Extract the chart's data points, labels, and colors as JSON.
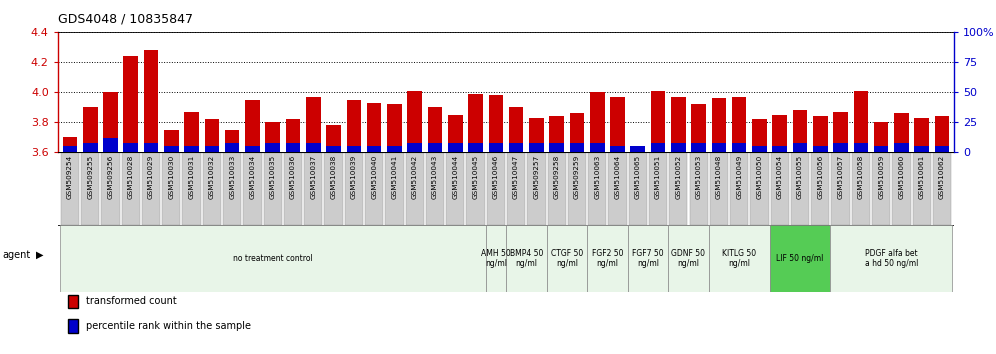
{
  "title": "GDS4048 / 10835847",
  "samples": [
    "GSM509254",
    "GSM509255",
    "GSM509256",
    "GSM510028",
    "GSM510029",
    "GSM510030",
    "GSM510031",
    "GSM510032",
    "GSM510033",
    "GSM510034",
    "GSM510035",
    "GSM510036",
    "GSM510037",
    "GSM510038",
    "GSM510039",
    "GSM510040",
    "GSM510041",
    "GSM510042",
    "GSM510043",
    "GSM510044",
    "GSM510045",
    "GSM510046",
    "GSM510047",
    "GSM509257",
    "GSM509258",
    "GSM509259",
    "GSM510063",
    "GSM510064",
    "GSM510065",
    "GSM510051",
    "GSM510052",
    "GSM510053",
    "GSM510048",
    "GSM510049",
    "GSM510050",
    "GSM510054",
    "GSM510055",
    "GSM510056",
    "GSM510057",
    "GSM510058",
    "GSM510059",
    "GSM510060",
    "GSM510061",
    "GSM510062"
  ],
  "transformed_counts": [
    3.7,
    3.9,
    4.0,
    4.24,
    4.28,
    3.75,
    3.87,
    3.82,
    3.75,
    3.95,
    3.8,
    3.82,
    3.97,
    3.78,
    3.95,
    3.93,
    3.92,
    4.01,
    3.9,
    3.85,
    3.99,
    3.98,
    3.9,
    3.83,
    3.84,
    3.86,
    4.0,
    3.97,
    3.62,
    4.01,
    3.97,
    3.92,
    3.96,
    3.97,
    3.82,
    3.85,
    3.88,
    3.84,
    3.87,
    4.01,
    3.8,
    3.86,
    3.83,
    3.84
  ],
  "percentile_ranks": [
    5,
    8,
    12,
    8,
    8,
    5,
    5,
    5,
    8,
    5,
    8,
    8,
    8,
    5,
    5,
    5,
    5,
    8,
    8,
    8,
    8,
    8,
    8,
    8,
    8,
    8,
    8,
    5,
    5,
    8,
    8,
    8,
    8,
    8,
    5,
    5,
    8,
    5,
    8,
    8,
    5,
    8,
    5,
    5
  ],
  "y_min": 3.6,
  "y_max": 4.4,
  "y_ticks_left": [
    3.6,
    3.8,
    4.0,
    4.2,
    4.4
  ],
  "y_ticks_right": [
    0,
    25,
    50,
    75,
    100
  ],
  "bar_color": "#cc0000",
  "percentile_color": "#0000cc",
  "agents": [
    {
      "label": "no treatment control",
      "start": 0,
      "end": 20,
      "bg": "#e8f5e8"
    },
    {
      "label": "AMH 50\nng/ml",
      "start": 21,
      "end": 21,
      "bg": "#e8f5e8"
    },
    {
      "label": "BMP4 50\nng/ml",
      "start": 22,
      "end": 23,
      "bg": "#e8f5e8"
    },
    {
      "label": "CTGF 50\nng/ml",
      "start": 24,
      "end": 25,
      "bg": "#e8f5e8"
    },
    {
      "label": "FGF2 50\nng/ml",
      "start": 26,
      "end": 27,
      "bg": "#e8f5e8"
    },
    {
      "label": "FGF7 50\nng/ml",
      "start": 28,
      "end": 29,
      "bg": "#e8f5e8"
    },
    {
      "label": "GDNF 50\nng/ml",
      "start": 30,
      "end": 31,
      "bg": "#e8f5e8"
    },
    {
      "label": "KITLG 50\nng/ml",
      "start": 32,
      "end": 34,
      "bg": "#e8f5e8"
    },
    {
      "label": "LIF 50 ng/ml",
      "start": 35,
      "end": 37,
      "bg": "#55cc55"
    },
    {
      "label": "PDGF alfa bet\na hd 50 ng/ml",
      "start": 38,
      "end": 43,
      "bg": "#e8f5e8"
    }
  ],
  "legend_entries": [
    {
      "label": "transformed count",
      "color": "#cc0000"
    },
    {
      "label": "percentile rank within the sample",
      "color": "#0000cc"
    }
  ]
}
